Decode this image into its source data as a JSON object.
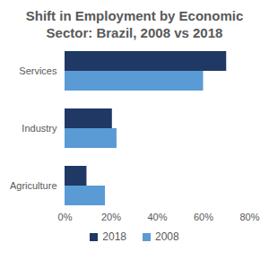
{
  "chart_data": {
    "type": "bar",
    "orientation": "horizontal",
    "title": "Shift in Employment by Economic Sector: Brazil, 2008 vs 2018",
    "categories": [
      "Services",
      "Industry",
      "Agriculture"
    ],
    "series": [
      {
        "name": "2018",
        "color": "#1f3864",
        "values": [
          70,
          20.5,
          9.5
        ]
      },
      {
        "name": "2008",
        "color": "#5b9bd5",
        "values": [
          60,
          22.5,
          17.5
        ]
      }
    ],
    "xlim": [
      0,
      80
    ],
    "xticks": [
      {
        "value": 0,
        "label": "0%"
      },
      {
        "value": 20,
        "label": "20%"
      },
      {
        "value": 40,
        "label": "40%"
      },
      {
        "value": 60,
        "label": "60%"
      },
      {
        "value": 80,
        "label": "80%"
      }
    ],
    "grid": false,
    "legend": "bottom"
  }
}
